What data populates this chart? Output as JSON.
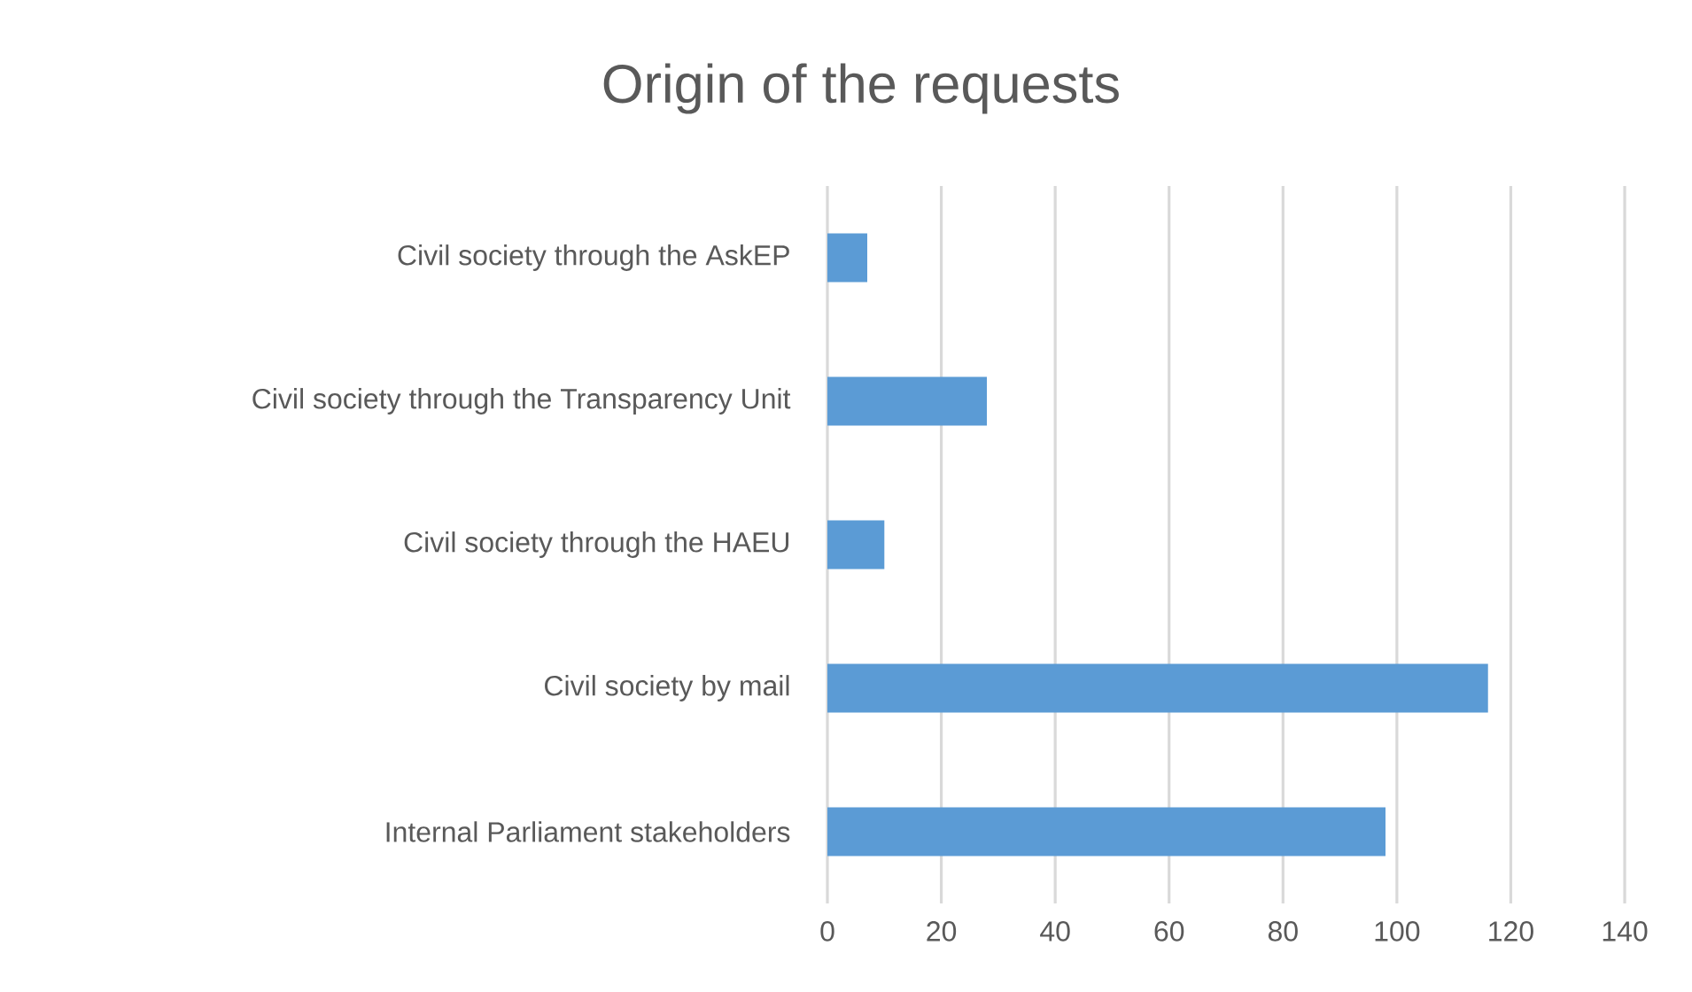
{
  "chart_data": {
    "type": "bar",
    "title": "Origin of the requests",
    "orientation": "horizontal",
    "categories": [
      "Civil society through the AskEP",
      "Civil society through the Transparency Unit",
      "Civil society through the HAEU",
      "Civil society by mail",
      "Internal Parliament stakeholders"
    ],
    "values": [
      7,
      28,
      10,
      116,
      98
    ],
    "color": "#5b9bd5",
    "xlim": [
      0,
      140
    ],
    "xticks": [
      0,
      20,
      40,
      60,
      80,
      100,
      120,
      140
    ],
    "grid": "x"
  }
}
